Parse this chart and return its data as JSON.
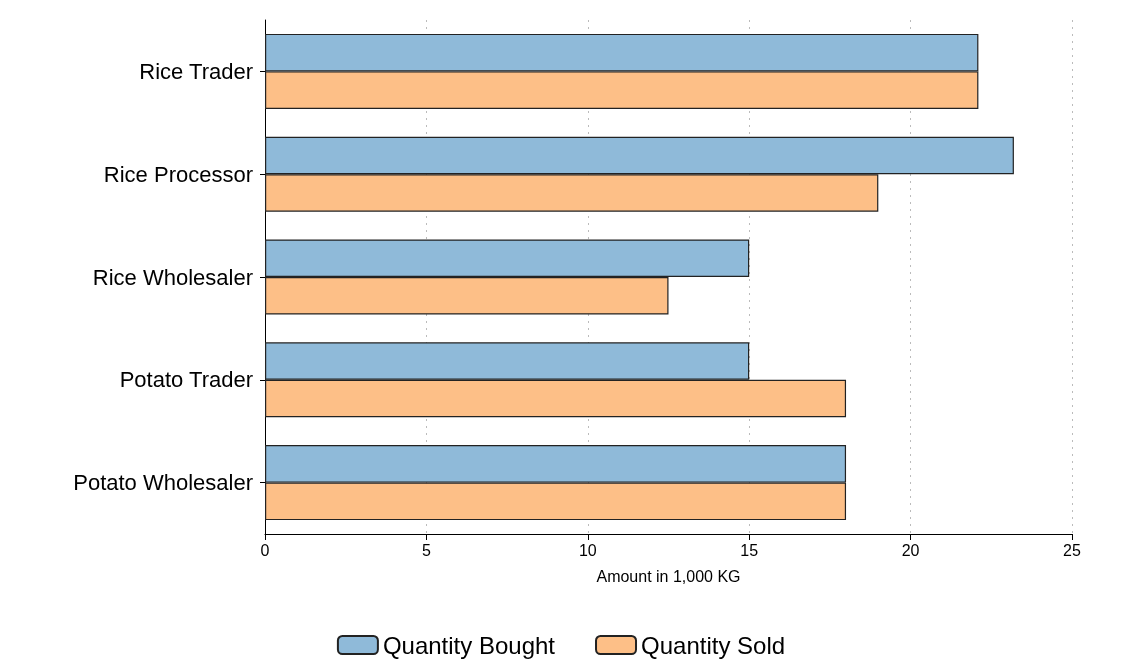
{
  "chart_data": {
    "type": "bar",
    "orientation": "horizontal",
    "xlabel": "Amount in 1,000 KG",
    "categories": [
      "Rice Trader",
      "Rice Processor",
      "Rice Wholesaler",
      "Potato Trader",
      "Potato Wholesaler"
    ],
    "series": [
      {
        "name": "Quantity Bought",
        "color": "#8fbad9",
        "values": [
          22.1,
          23.2,
          15.0,
          15.0,
          18.0
        ]
      },
      {
        "name": "Quantity Sold",
        "color": "#fdbf87",
        "values": [
          22.1,
          19.0,
          12.5,
          18.0,
          18.0
        ]
      }
    ],
    "xlim": [
      0,
      25
    ],
    "xticks": [
      0,
      5,
      10,
      15,
      20,
      25
    ],
    "grid": "x",
    "legend": "bottom"
  }
}
